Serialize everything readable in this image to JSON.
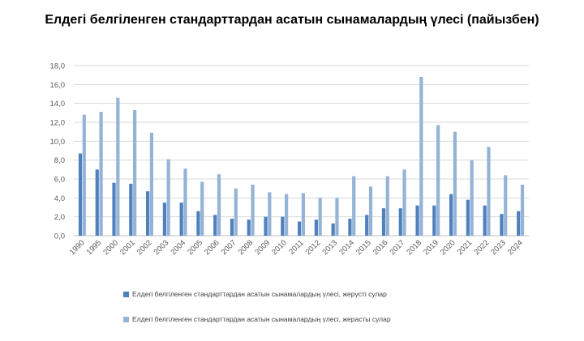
{
  "chart_data": {
    "type": "bar",
    "title": "Елдегі белгіленген  стандарттардан асатын сынамалардың  үлесі  (пайызбен)",
    "categories": [
      "1990",
      "1995",
      "2000",
      "2001",
      "2002",
      "2003",
      "2004",
      "2005",
      "2006",
      "2007",
      "2008",
      "2009",
      "2010",
      "2011",
      "2012",
      "2013",
      "2014",
      "2015",
      "2016",
      "2017",
      "2018",
      "2019",
      "2020",
      "2021",
      "2022",
      "2023",
      "2024"
    ],
    "series": [
      {
        "name": "Елдегі белгіленген  стандарттардан асатын сынамалардың үлесі, жерүсті сулар",
        "color": "#4f81bd",
        "values": [
          8.7,
          7.0,
          5.6,
          5.5,
          4.7,
          3.5,
          3.5,
          2.6,
          2.2,
          1.8,
          1.7,
          2.0,
          2.0,
          1.5,
          1.7,
          1.3,
          1.8,
          2.2,
          2.9,
          2.9,
          3.2,
          3.2,
          4.4,
          3.8,
          3.2,
          2.3,
          2.6
        ]
      },
      {
        "name": "Елдегі белгіленген  стандарттардан асатын сынамалардың үлесі, жерасты сулар",
        "color": "#95b3d7",
        "values": [
          12.8,
          13.1,
          14.6,
          13.3,
          10.9,
          8.1,
          7.1,
          5.7,
          6.5,
          5.0,
          5.4,
          4.6,
          4.4,
          4.5,
          4.0,
          4.0,
          6.3,
          5.2,
          6.3,
          7.0,
          16.8,
          11.7,
          11.0,
          8.0,
          9.4,
          6.4,
          5.4
        ]
      }
    ],
    "yticks": [
      "0,0",
      "2,0",
      "4,0",
      "6,0",
      "8,0",
      "10,0",
      "12,0",
      "14,0",
      "16,0",
      "18,0"
    ],
    "ylim": [
      0,
      18
    ],
    "grid": true,
    "legend_position": "bottom"
  }
}
